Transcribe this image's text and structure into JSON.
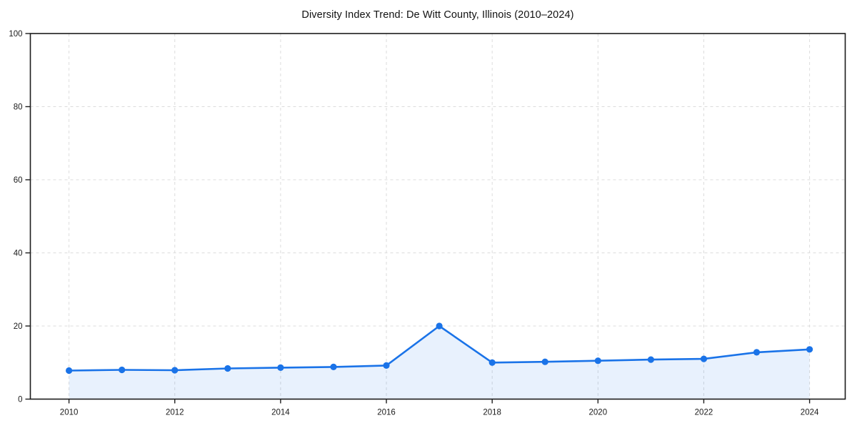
{
  "figure": {
    "background": "#ffffff"
  },
  "chart_data": {
    "type": "area",
    "title": "Diversity Index Trend: De Witt County, Illinois (2010–2024)",
    "x": [
      2010,
      2011,
      2012,
      2013,
      2014,
      2015,
      2016,
      2017,
      2018,
      2019,
      2020,
      2021,
      2022,
      2023,
      2024
    ],
    "values": [
      7.8,
      8.0,
      7.9,
      8.4,
      8.6,
      8.8,
      9.2,
      20.0,
      10.0,
      10.2,
      10.5,
      10.8,
      11.0,
      12.8,
      13.6
    ],
    "xlabel": "",
    "ylabel": "",
    "ylim": [
      0,
      100
    ],
    "yticks": [
      0,
      20,
      40,
      60,
      80,
      100
    ],
    "ytick_labels": [
      "0",
      "20",
      "40",
      "60",
      "80",
      "100"
    ],
    "xticks": [
      2010,
      2012,
      2014,
      2016,
      2018,
      2020,
      2022,
      2024
    ],
    "xtick_labels": [
      "2010",
      "2012",
      "2014",
      "2016",
      "2018",
      "2020",
      "2022",
      "2024"
    ],
    "grid": true,
    "legend": "none",
    "line_color": "#1a73e8",
    "marker_color": "#1a73e8",
    "fill_color": "rgba(26,115,232,0.10)",
    "grid_color": "#dcdcdc",
    "axis_color": "#1c1c1c",
    "tick_label_color": "#1a1a1a"
  }
}
